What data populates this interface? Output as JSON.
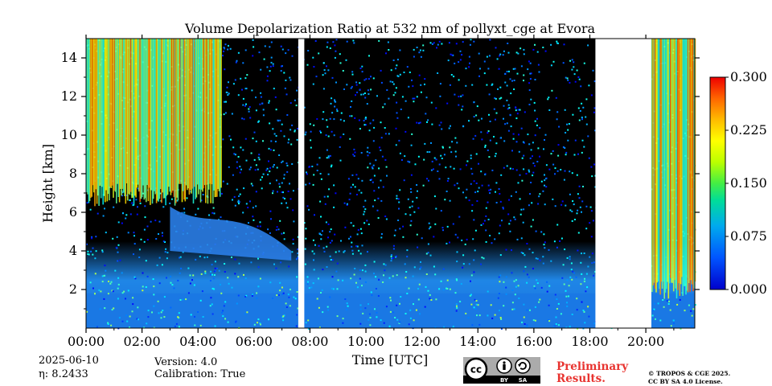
{
  "chart_data": {
    "type": "heatmap",
    "title": "Volume Depolarization Ratio at 532 nm of pollyxt_cge at Evora",
    "xlabel": "Time [UTC]",
    "ylabel": "Height [km]",
    "xlim": [
      "00:00",
      "21:45"
    ],
    "ylim": [
      0,
      15
    ],
    "x_ticks": [
      "00:00",
      "02:00",
      "04:00",
      "06:00",
      "08:00",
      "10:00",
      "12:00",
      "14:00",
      "16:00",
      "18:00",
      "20:00"
    ],
    "y_ticks": [
      "2",
      "4",
      "6",
      "8",
      "10",
      "12",
      "14"
    ],
    "colorbar": {
      "min": 0.0,
      "max": 0.3,
      "ticks": [
        "0.000",
        "0.075",
        "0.150",
        "0.225",
        "0.300"
      ],
      "colormap": "jet"
    },
    "data_gaps_utc": [
      [
        "07:35",
        "07:48"
      ],
      [
        "18:12",
        "20:12"
      ]
    ],
    "colors": {
      "low": "#0000cc",
      "high": "#ff0000",
      "background": "#000000"
    }
  },
  "footer": {
    "date": "2025-06-10",
    "eta": "η: 8.2433",
    "version": "Version: 4.0",
    "calibration": "Calibration: True",
    "preliminary_line1": "Preliminary",
    "preliminary_line2": "Results.",
    "copyright_line1": "© TROPOS & CGE 2025.",
    "copyright_line2": "CC BY SA 4.0 License."
  },
  "license_badge": {
    "cc": "cc",
    "by": "BY",
    "sa": "SA",
    "icon": "creative-commons-by-sa-icon"
  }
}
